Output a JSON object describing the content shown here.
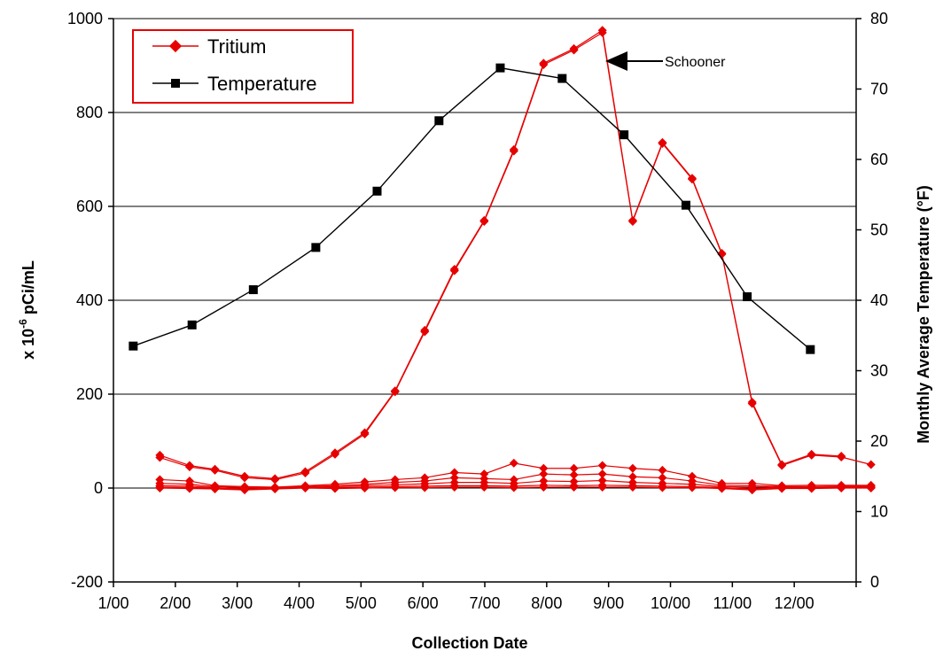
{
  "chart_data": {
    "type": "line",
    "xlabel": "Collection Date",
    "ylabel_main": "x 10",
    "ylabel_exp": "-6",
    "ylabel_unit": " pCi/mL",
    "y2label": "Monthly Average Temperature (°F)",
    "x_ticks": [
      "1/00",
      "2/00",
      "3/00",
      "4/00",
      "5/00",
      "6/00",
      "7/00",
      "8/00",
      "9/00",
      "10/00",
      "11/00",
      "12/00"
    ],
    "xlim": [
      0,
      12
    ],
    "ylim": [
      -200,
      1000
    ],
    "y_ticks": [
      "-200",
      "0",
      "200",
      "400",
      "600",
      "800",
      "1000"
    ],
    "y2lim": [
      0,
      80
    ],
    "y2_ticks": [
      "0",
      "10",
      "20",
      "30",
      "40",
      "50",
      "60",
      "70",
      "80"
    ],
    "grid": true,
    "legend": {
      "placement": "top-left",
      "entries": [
        "Tritium",
        "Temperature"
      ]
    },
    "annotation": "Schooner",
    "colors": {
      "tritium": "#e60000",
      "temperature": "#000000"
    },
    "temperature": {
      "x": [
        0.32,
        1.27,
        2.26,
        3.27,
        4.26,
        5.26,
        6.25,
        7.25,
        8.25,
        9.25,
        10.24,
        11.26
      ],
      "y": [
        33.5,
        36.5,
        41.5,
        47.5,
        55.5,
        65.5,
        73,
        71.5,
        63.5,
        53.5,
        40.5,
        33
      ]
    },
    "tritium_main": {
      "x": [
        0.75,
        1.23,
        1.64,
        2.12,
        2.61,
        3.1,
        3.58,
        4.06,
        4.55,
        5.03,
        5.51,
        5.99,
        6.47,
        6.95,
        7.44,
        7.9,
        8.39,
        8.87,
        9.35,
        9.83,
        10.32,
        10.8,
        11.28,
        11.76
      ],
      "y": [
        70,
        48,
        40,
        25,
        20,
        35,
        75,
        118,
        207,
        336,
        466,
        570,
        721,
        905,
        936,
        975,
        570,
        736,
        660,
        500,
        183,
        50,
        72,
        68
      ]
    },
    "tritium_low": [
      {
        "x": [
          0.75,
          1.23,
          1.64,
          2.12,
          2.61,
          3.1,
          3.58,
          4.06,
          4.55,
          5.03,
          5.51,
          5.99,
          6.47,
          6.95,
          7.44,
          7.9,
          8.39,
          8.87,
          9.35,
          9.83,
          10.32,
          10.8,
          11.28,
          11.76,
          12.24
        ],
        "y": [
          65,
          45,
          38,
          22,
          18,
          32,
          72,
          115,
          205,
          333,
          463,
          568,
          718,
          902,
          933,
          970,
          568,
          734,
          658,
          498,
          180,
          48,
          70,
          66,
          50
        ]
      },
      {
        "x": [
          0.75,
          1.23,
          1.64,
          2.12,
          2.61,
          3.1,
          3.58,
          4.06,
          4.55,
          5.03,
          5.51,
          5.99,
          6.47,
          6.95,
          7.44,
          7.9,
          8.39,
          8.87,
          9.35,
          9.83,
          10.32,
          10.8,
          11.28,
          11.76,
          12.24
        ],
        "y": [
          18,
          15,
          5,
          3,
          2,
          5,
          8,
          13,
          18,
          22,
          33,
          30,
          53,
          42,
          42,
          48,
          42,
          38,
          25,
          10,
          10,
          5,
          6,
          6,
          6
        ]
      },
      {
        "x": [
          0.75,
          1.23,
          1.64,
          2.12,
          2.61,
          3.1,
          3.58,
          4.06,
          4.55,
          5.03,
          5.51,
          5.99,
          6.47,
          6.95,
          7.44,
          7.9,
          8.39,
          8.87,
          9.35,
          9.83,
          10.32,
          10.8,
          11.28,
          11.76,
          12.24
        ],
        "y": [
          10,
          8,
          3,
          1,
          1,
          3,
          5,
          8,
          12,
          15,
          22,
          20,
          18,
          30,
          28,
          30,
          24,
          22,
          15,
          6,
          5,
          3,
          3,
          4,
          4
        ]
      },
      {
        "x": [
          0.75,
          1.23,
          1.64,
          2.12,
          2.61,
          3.1,
          3.58,
          4.06,
          4.55,
          5.03,
          5.51,
          5.99,
          6.47,
          6.95,
          7.44,
          7.9,
          8.39,
          8.87,
          9.35,
          9.83,
          10.32,
          10.8,
          11.28,
          11.76,
          12.24
        ],
        "y": [
          5,
          4,
          1,
          -2,
          0,
          2,
          3,
          5,
          7,
          9,
          12,
          12,
          10,
          15,
          14,
          16,
          12,
          10,
          8,
          3,
          2,
          2,
          1,
          2,
          2
        ]
      },
      {
        "x": [
          0.75,
          1.23,
          1.64,
          2.12,
          2.61,
          3.1,
          3.58,
          4.06,
          4.55,
          5.03,
          5.51,
          5.99,
          6.47,
          6.95,
          7.44,
          7.9,
          8.39,
          8.87,
          9.35,
          9.83,
          10.32,
          10.8,
          11.28,
          11.76,
          12.24
        ],
        "y": [
          2,
          1,
          0,
          -3,
          -1,
          1,
          1,
          2,
          3,
          4,
          5,
          5,
          4,
          6,
          5,
          6,
          5,
          4,
          3,
          1,
          -2,
          1,
          0,
          1,
          1
        ]
      },
      {
        "x": [
          0.75,
          1.23,
          1.64,
          2.12,
          2.61,
          3.1,
          3.58,
          4.06,
          4.55,
          5.03,
          5.51,
          5.99,
          6.47,
          6.95,
          7.44,
          7.9,
          8.39,
          8.87,
          9.35,
          9.83,
          10.32,
          10.8,
          11.28,
          11.76,
          12.24
        ],
        "y": [
          0,
          -1,
          -2,
          -4,
          -2,
          0,
          -1,
          0,
          1,
          1,
          2,
          2,
          1,
          2,
          2,
          2,
          2,
          1,
          1,
          -1,
          -4,
          -1,
          -1,
          0,
          0
        ]
      }
    ]
  }
}
